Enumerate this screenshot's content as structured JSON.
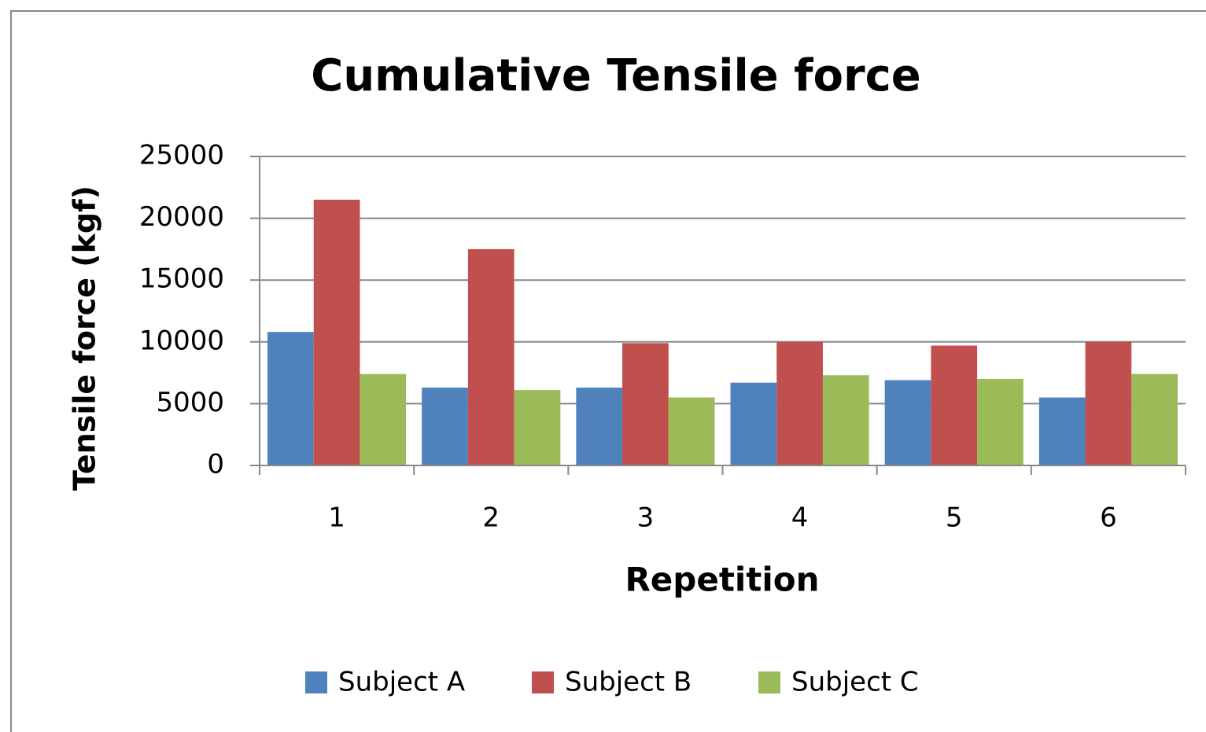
{
  "chart_data": {
    "type": "bar",
    "title": "Cumulative Tensile force",
    "xlabel": "Repetition",
    "ylabel": "Tensile force (kgf)",
    "categories": [
      "1",
      "2",
      "3",
      "4",
      "5",
      "6"
    ],
    "series": [
      {
        "name": "Subject A",
        "color": "#4f81bd",
        "values": [
          10800,
          6300,
          6300,
          6700,
          6900,
          5500
        ]
      },
      {
        "name": "Subject B",
        "color": "#c0504d",
        "values": [
          21500,
          17500,
          9900,
          10000,
          9700,
          10000
        ]
      },
      {
        "name": "Subject C",
        "color": "#9bbb59",
        "values": [
          7400,
          6100,
          5500,
          7300,
          7000,
          7400
        ]
      }
    ],
    "ylim": [
      0,
      25000
    ],
    "yticks": [
      0,
      5000,
      10000,
      15000,
      20000,
      25000
    ],
    "grid": true,
    "legend": "bottom"
  }
}
